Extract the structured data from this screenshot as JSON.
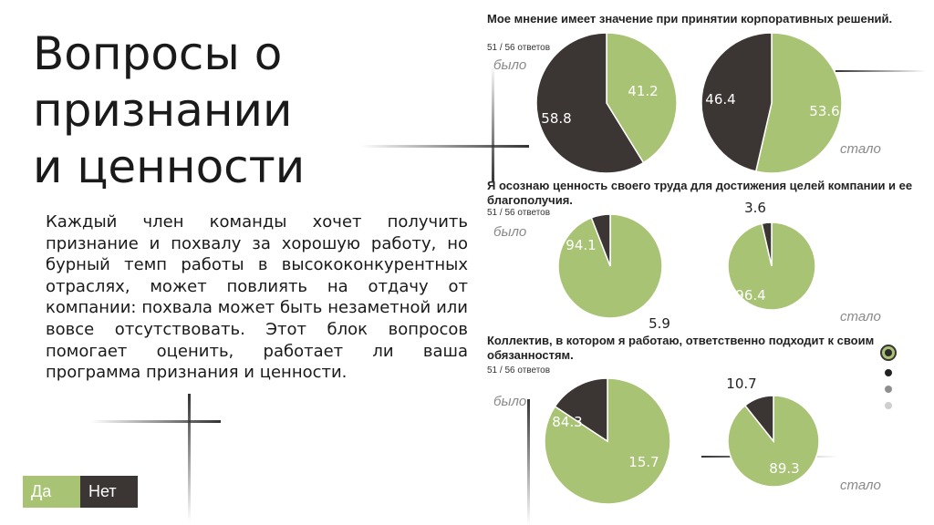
{
  "title_lines": [
    "Вопросы о",
    "признании",
    "и ценности"
  ],
  "body": "Каждый член команды хочет получить признание и похвалу за хорошую работу, но бурный темп работы в высококонкурентных отраслях, может повлиять на отдачу от компании: похвала может быть незаметной или вовсе отсутствовать. Этот блок вопросов помогает оценить, работает ли ваша программа признания и ценности.",
  "legend": {
    "yes": "Да",
    "no": "Нет"
  },
  "colors": {
    "yes": "#a8c374",
    "no": "#3b3533"
  },
  "questions": [
    {
      "title": "Мое мнение имеет значение при принятии корпоративных решений.",
      "count": "51 / 56 ответов",
      "before_label": "было",
      "after_label": "стало"
    },
    {
      "title": "Я осознаю ценность своего труда для достижения целей компании и ее благополучия.",
      "count": "51 / 56 ответов",
      "before_label": "было",
      "after_label": "стало"
    },
    {
      "title": "Коллектив, в котором я работаю, ответственно подходит к своим обязанностям.",
      "count": "51 / 56 ответов",
      "before_label": "было",
      "after_label": "стало"
    }
  ],
  "chart_data": [
    {
      "type": "pie",
      "title": "Мое мнение имеет значение при принятии корпоративных решений.",
      "labels": [
        "Да",
        "Нет"
      ],
      "before": [
        41.2,
        58.8
      ],
      "after": [
        53.6,
        46.4
      ]
    },
    {
      "type": "pie",
      "title": "Я осознаю ценность своего труда для достижения целей компании и ее благополучия.",
      "labels": [
        "Да",
        "Нет"
      ],
      "before": [
        94.1,
        5.9
      ],
      "after": [
        96.4,
        3.6
      ]
    },
    {
      "type": "pie",
      "title": "Коллектив, в котором я работаю, ответственно подходит к своим обязанностям.",
      "labels": [
        "Да",
        "Нет"
      ],
      "before": [
        84.3,
        15.7
      ],
      "after": [
        89.3,
        10.7
      ]
    }
  ]
}
